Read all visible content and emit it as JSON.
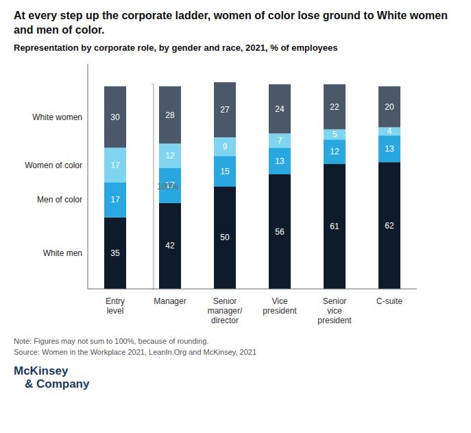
{
  "chart_data": {
    "type": "bar",
    "stacked": true,
    "data_labels": true,
    "tick_labels": "x",
    "grid": false,
    "title": "At every step up the corporate ladder, women of color lose ground to White women and men of color.",
    "subtitle": "Representation by corporate role, by gender and race, 2021, % of employees",
    "categories": [
      "Entry\nlevel",
      "Manager",
      "Senior\nmanager/\ndirector",
      "Vice\npresident",
      "Senior\nvice\npresident",
      "C-suite"
    ],
    "series": [
      {
        "name": "White men",
        "color": "#0d1b2a",
        "values": [
          35,
          42,
          50,
          56,
          61,
          62
        ]
      },
      {
        "name": "Men of color",
        "color": "#29a8e0",
        "values": [
          17,
          17,
          15,
          13,
          12,
          13
        ]
      },
      {
        "name": "Women of color",
        "color": "#7fd4f0",
        "values": [
          17,
          12,
          9,
          7,
          5,
          4
        ]
      },
      {
        "name": "White women",
        "color": "#4a5869",
        "values": [
          30,
          28,
          27,
          24,
          22,
          20
        ]
      }
    ],
    "ylim": [
      0,
      110
    ],
    "annotations": [
      {
        "text": "100%",
        "y_from": 0,
        "y_to": 100
      },
      {
        "text": "Note: Figures may not sum to 100%, because of rounding."
      },
      {
        "text": "Source: Women in the Workplace 2021, LeanIn.Org and McKinsey, 2021"
      },
      {
        "text": "McKinsey",
        "color": "#1a3a5c"
      },
      {
        "text": "& Company",
        "color": "#1a3a5c"
      }
    ]
  }
}
